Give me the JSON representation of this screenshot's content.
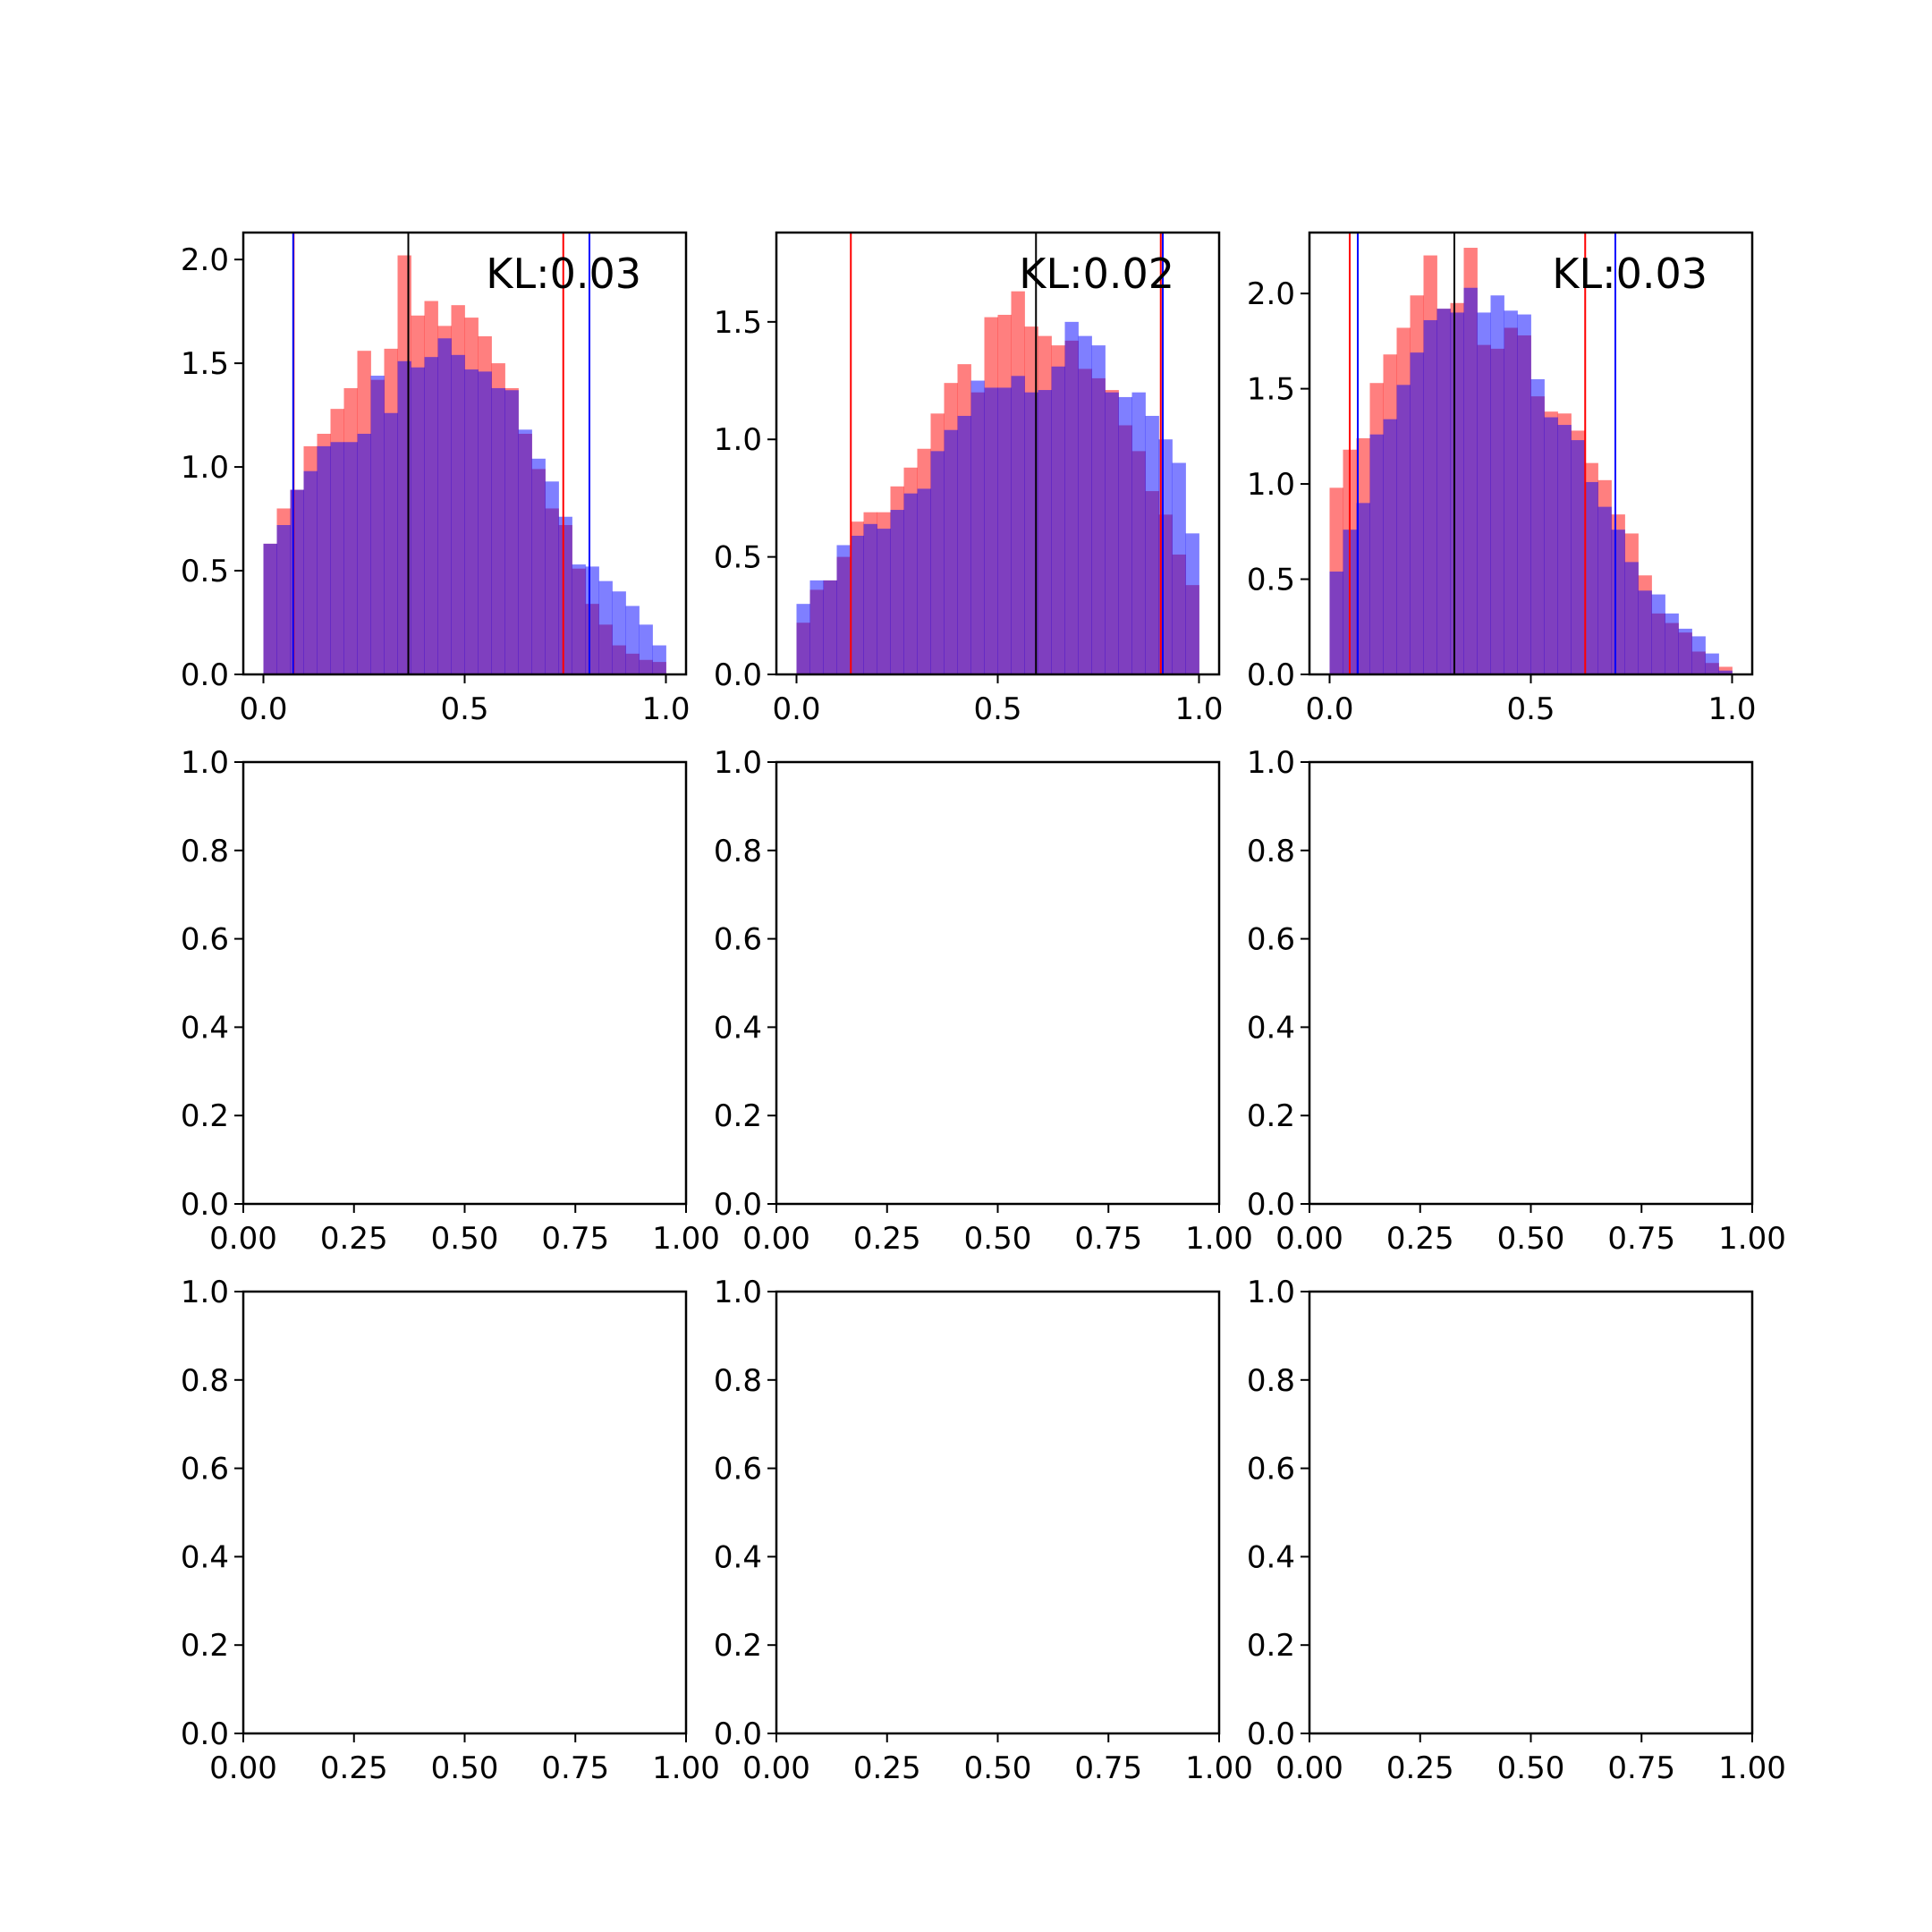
{
  "colors": {
    "red": "#ff0000",
    "blue": "#0000ff",
    "black": "#000000",
    "red_fill": "rgba(255,0,0,0.5)",
    "blue_fill": "rgba(0,0,255,0.5)"
  },
  "chart_data": [
    {
      "type": "bar",
      "subtype": "histogram-overlay",
      "annotation": "KL:0.03",
      "xlim": [
        -0.05,
        1.05
      ],
      "ylim": [
        0,
        2.13
      ],
      "xticks": [
        0.0,
        0.5,
        1.0
      ],
      "xtick_labels": [
        "0.0",
        "0.5",
        "1.0"
      ],
      "yticks": [
        0.0,
        0.5,
        1.0,
        1.5,
        2.0
      ],
      "ytick_labels": [
        "0.0",
        "0.5",
        "1.0",
        "1.5",
        "2.0"
      ],
      "bin_edges_range": [
        0,
        1
      ],
      "bins": 30,
      "series": [
        {
          "color": "red",
          "values": [
            0.63,
            0.8,
            0.89,
            1.1,
            1.16,
            1.28,
            1.38,
            1.56,
            1.42,
            1.57,
            2.02,
            1.73,
            1.8,
            1.68,
            1.78,
            1.72,
            1.63,
            1.5,
            1.38,
            1.16,
            0.99,
            0.8,
            0.72,
            0.51,
            0.34,
            0.24,
            0.14,
            0.1,
            0.07,
            0.06
          ]
        },
        {
          "color": "blue",
          "values": [
            0.63,
            0.72,
            0.89,
            0.98,
            1.1,
            1.12,
            1.12,
            1.16,
            1.44,
            1.26,
            1.51,
            1.48,
            1.53,
            1.62,
            1.54,
            1.47,
            1.46,
            1.38,
            1.37,
            1.18,
            1.04,
            0.93,
            0.76,
            0.53,
            0.52,
            0.45,
            0.4,
            0.33,
            0.24,
            0.14
          ]
        }
      ],
      "vlines": [
        {
          "x": 0.075,
          "color": "red"
        },
        {
          "x": 0.074,
          "color": "blue"
        },
        {
          "x": 0.36,
          "color": "black"
        },
        {
          "x": 0.745,
          "color": "red"
        },
        {
          "x": 0.81,
          "color": "blue"
        }
      ]
    },
    {
      "type": "bar",
      "subtype": "histogram-overlay",
      "annotation": "KL:0.02",
      "xlim": [
        -0.05,
        1.05
      ],
      "ylim": [
        0,
        1.88
      ],
      "xticks": [
        0.0,
        0.5,
        1.0
      ],
      "xtick_labels": [
        "0.0",
        "0.5",
        "1.0"
      ],
      "yticks": [
        0.0,
        0.5,
        1.0,
        1.5
      ],
      "ytick_labels": [
        "0.0",
        "0.5",
        "1.0",
        "1.5"
      ],
      "bin_edges_range": [
        0,
        1
      ],
      "bins": 30,
      "series": [
        {
          "color": "red",
          "values": [
            0.22,
            0.36,
            0.4,
            0.5,
            0.65,
            0.69,
            0.69,
            0.8,
            0.88,
            0.96,
            1.11,
            1.24,
            1.32,
            1.2,
            1.52,
            1.53,
            1.63,
            1.48,
            1.44,
            1.4,
            1.42,
            1.3,
            1.26,
            1.21,
            1.06,
            0.95,
            0.78,
            0.68,
            0.51,
            0.38
          ]
        },
        {
          "color": "blue",
          "values": [
            0.3,
            0.4,
            0.4,
            0.55,
            0.59,
            0.64,
            0.62,
            0.7,
            0.77,
            0.79,
            0.95,
            1.04,
            1.1,
            1.25,
            1.22,
            1.22,
            1.27,
            1.2,
            1.21,
            1.31,
            1.5,
            1.44,
            1.4,
            1.2,
            1.18,
            1.2,
            1.1,
            1.0,
            0.9,
            0.6
          ]
        }
      ],
      "vlines": [
        {
          "x": 0.135,
          "color": "red"
        },
        {
          "x": 0.595,
          "color": "black"
        },
        {
          "x": 0.905,
          "color": "red"
        },
        {
          "x": 0.91,
          "color": "blue"
        }
      ]
    },
    {
      "type": "bar",
      "subtype": "histogram-overlay",
      "annotation": "KL:0.03",
      "xlim": [
        -0.05,
        1.05
      ],
      "ylim": [
        0,
        2.32
      ],
      "xticks": [
        0.0,
        0.5,
        1.0
      ],
      "xtick_labels": [
        "0.0",
        "0.5",
        "1.0"
      ],
      "yticks": [
        0.0,
        0.5,
        1.0,
        1.5,
        2.0
      ],
      "ytick_labels": [
        "0.0",
        "0.5",
        "1.0",
        "1.5",
        "2.0"
      ],
      "bin_edges_range": [
        0,
        1
      ],
      "bins": 30,
      "series": [
        {
          "color": "red",
          "values": [
            0.98,
            1.18,
            1.24,
            1.53,
            1.68,
            1.82,
            1.99,
            2.2,
            1.92,
            1.95,
            2.24,
            1.73,
            1.71,
            1.82,
            1.78,
            1.46,
            1.38,
            1.37,
            1.28,
            1.11,
            1.02,
            0.84,
            0.74,
            0.52,
            0.32,
            0.27,
            0.22,
            0.12,
            0.06,
            0.04
          ]
        },
        {
          "color": "blue",
          "values": [
            0.54,
            0.76,
            0.9,
            1.26,
            1.34,
            1.52,
            1.69,
            1.86,
            1.92,
            1.9,
            2.03,
            1.9,
            1.99,
            1.91,
            1.89,
            1.55,
            1.35,
            1.31,
            1.23,
            1.01,
            0.88,
            0.76,
            0.59,
            0.44,
            0.42,
            0.32,
            0.24,
            0.2,
            0.11,
            0.02
          ]
        }
      ],
      "vlines": [
        {
          "x": 0.05,
          "color": "red"
        },
        {
          "x": 0.07,
          "color": "blue"
        },
        {
          "x": 0.31,
          "color": "black"
        },
        {
          "x": 0.635,
          "color": "red"
        },
        {
          "x": 0.71,
          "color": "blue"
        }
      ]
    },
    {
      "type": "empty",
      "xlim": [
        0,
        1
      ],
      "ylim": [
        0,
        1
      ],
      "xticks": [
        0,
        0.25,
        0.5,
        0.75,
        1.0
      ],
      "xtick_labels": [
        "0.00",
        "0.25",
        "0.50",
        "0.75",
        "1.00"
      ],
      "yticks": [
        0,
        0.2,
        0.4,
        0.6,
        0.8,
        1.0
      ],
      "ytick_labels": [
        "0.0",
        "0.2",
        "0.4",
        "0.6",
        "0.8",
        "1.0"
      ]
    },
    {
      "type": "empty",
      "xlim": [
        0,
        1
      ],
      "ylim": [
        0,
        1
      ],
      "xticks": [
        0,
        0.25,
        0.5,
        0.75,
        1.0
      ],
      "xtick_labels": [
        "0.00",
        "0.25",
        "0.50",
        "0.75",
        "1.00"
      ],
      "yticks": [
        0,
        0.2,
        0.4,
        0.6,
        0.8,
        1.0
      ],
      "ytick_labels": [
        "0.0",
        "0.2",
        "0.4",
        "0.6",
        "0.8",
        "1.0"
      ]
    },
    {
      "type": "empty",
      "xlim": [
        0,
        1
      ],
      "ylim": [
        0,
        1
      ],
      "xticks": [
        0,
        0.25,
        0.5,
        0.75,
        1.0
      ],
      "xtick_labels": [
        "0.00",
        "0.25",
        "0.50",
        "0.75",
        "1.00"
      ],
      "yticks": [
        0,
        0.2,
        0.4,
        0.6,
        0.8,
        1.0
      ],
      "ytick_labels": [
        "0.0",
        "0.2",
        "0.4",
        "0.6",
        "0.8",
        "1.0"
      ]
    },
    {
      "type": "empty",
      "xlim": [
        0,
        1
      ],
      "ylim": [
        0,
        1
      ],
      "xticks": [
        0,
        0.25,
        0.5,
        0.75,
        1.0
      ],
      "xtick_labels": [
        "0.00",
        "0.25",
        "0.50",
        "0.75",
        "1.00"
      ],
      "yticks": [
        0,
        0.2,
        0.4,
        0.6,
        0.8,
        1.0
      ],
      "ytick_labels": [
        "0.0",
        "0.2",
        "0.4",
        "0.6",
        "0.8",
        "1.0"
      ]
    },
    {
      "type": "empty",
      "xlim": [
        0,
        1
      ],
      "ylim": [
        0,
        1
      ],
      "xticks": [
        0,
        0.25,
        0.5,
        0.75,
        1.0
      ],
      "xtick_labels": [
        "0.00",
        "0.25",
        "0.50",
        "0.75",
        "1.00"
      ],
      "yticks": [
        0,
        0.2,
        0.4,
        0.6,
        0.8,
        1.0
      ],
      "ytick_labels": [
        "0.0",
        "0.2",
        "0.4",
        "0.6",
        "0.8",
        "1.0"
      ]
    },
    {
      "type": "empty",
      "xlim": [
        0,
        1
      ],
      "ylim": [
        0,
        1
      ],
      "xticks": [
        0,
        0.25,
        0.5,
        0.75,
        1.0
      ],
      "xtick_labels": [
        "0.00",
        "0.25",
        "0.50",
        "0.75",
        "1.00"
      ],
      "yticks": [
        0,
        0.2,
        0.4,
        0.6,
        0.8,
        1.0
      ],
      "ytick_labels": [
        "0.0",
        "0.2",
        "0.4",
        "0.6",
        "0.8",
        "1.0"
      ]
    }
  ]
}
